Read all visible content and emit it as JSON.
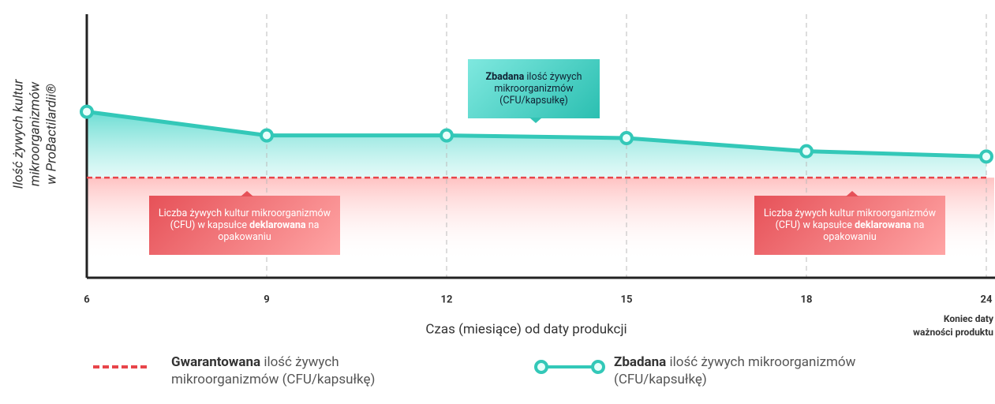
{
  "chart_data": {
    "type": "line",
    "y_label": [
      "Ilość żywych kultur",
      "mikroorganizmów",
      "w ProBactilardii®"
    ],
    "x_label": "Czas (miesiące) od daty produkcji",
    "x_note": [
      "Koniec daty",
      "ważności produktu"
    ],
    "categories": [
      6,
      9,
      12,
      15,
      18,
      24
    ],
    "ylim": [
      0,
      10
    ],
    "series": [
      {
        "name": [
          "Gwarantowana",
          "ilość żywych mikroorganizmów (CFU/kapsułkę)"
        ],
        "color": "#e8454a",
        "dashed": true,
        "values": [
          3.8,
          3.8,
          3.8,
          3.8,
          3.8,
          3.8
        ]
      },
      {
        "name": [
          "Zbadana",
          "ilość żywych mikroorganizmów (CFU/kapsułkę)"
        ],
        "color": "#33c8b8",
        "markers": true,
        "values": [
          6.3,
          5.4,
          5.4,
          5.3,
          4.8,
          4.6
        ]
      }
    ],
    "annotations": [
      {
        "bold": "Zbadana",
        "text": "ilość żywych mikroorganizmów (CFU/kapsułkę)"
      },
      {
        "text": "Liczba żywych kultur mikroorganizmów (CFU) w kapsułce",
        "bold": "deklarowana",
        "text_after": "na opakowaniu"
      },
      {
        "text": "Liczba żywych kultur mikroorganizmów (CFU) w kapsułce",
        "bold": "deklarowana",
        "text_after": "na opakowaniu"
      }
    ]
  }
}
